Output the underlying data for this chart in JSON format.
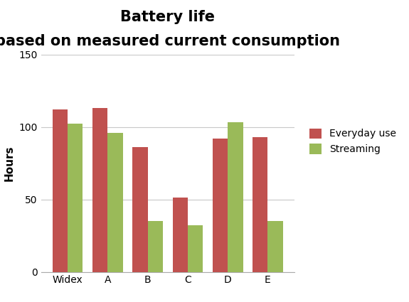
{
  "title_line1": "Battery life",
  "title_line2": "based on measured current consumption",
  "categories": [
    "Widex",
    "A",
    "B",
    "C",
    "D",
    "E"
  ],
  "everyday_use": [
    112,
    113,
    86,
    51,
    92,
    93
  ],
  "streaming": [
    102,
    96,
    35,
    32,
    103,
    35
  ],
  "everyday_color": "#c0514f",
  "streaming_color": "#9aba59",
  "ylabel": "Hours",
  "ylim": [
    0,
    150
  ],
  "yticks": [
    0,
    50,
    100,
    150
  ],
  "legend_labels": [
    "Everyday use",
    "Streaming"
  ],
  "bar_width": 0.38,
  "title_fontsize": 15,
  "axis_label_fontsize": 11,
  "tick_fontsize": 10,
  "legend_fontsize": 10,
  "background_color": "#ffffff",
  "grid_color": "#c8c8c8"
}
